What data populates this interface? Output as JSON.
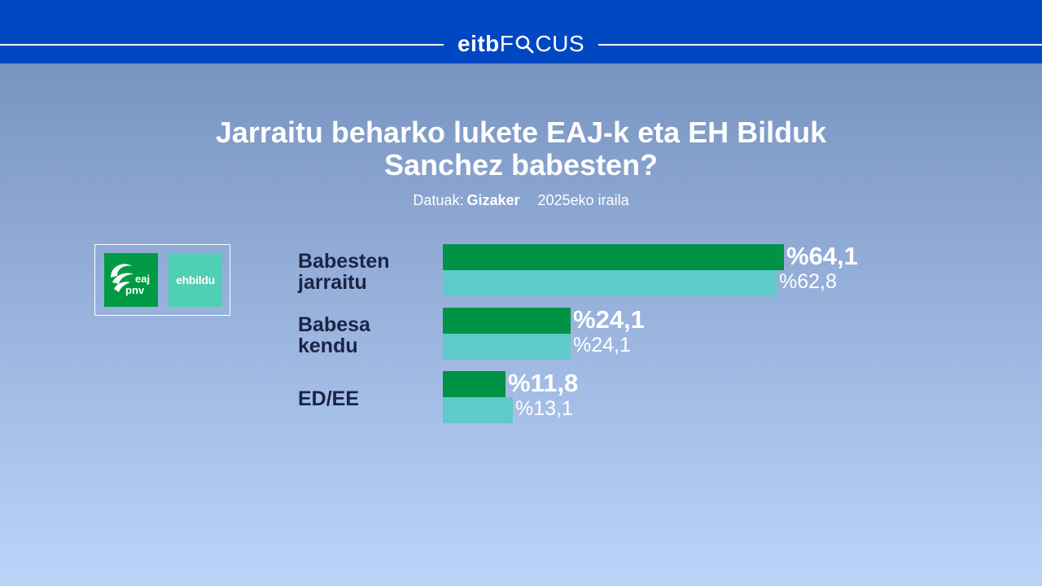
{
  "header": {
    "brand_main": "eitb",
    "brand_focus": "FOCUS"
  },
  "title_line1": "Jarraitu beharko lukete EAJ-k eta EH Bilduk",
  "title_line2": "Sanchez babesten?",
  "source_label": "Datuak:",
  "source_value": "Gizaker",
  "date": "2025eko iraila",
  "logos": {
    "pnv_text_1": "eaj",
    "pnv_text_2": "pnv",
    "bildu_text": "ehbildu"
  },
  "colors": {
    "header": "#0047c2",
    "series_eaj": "#009245",
    "series_bildu": "#5ecaca",
    "label_text": "#1a2444"
  },
  "chart_data": {
    "type": "bar",
    "orientation": "horizontal",
    "categories": [
      "Babesten jarraitu",
      "Babesa kendu",
      "ED/EE"
    ],
    "category_lines": [
      [
        "Babesten",
        "jarraitu"
      ],
      [
        "Babesa",
        "kendu"
      ],
      [
        "ED/EE"
      ]
    ],
    "series": [
      {
        "values": [
          64.1,
          24.1,
          11.8
        ],
        "labels": [
          "%64,1",
          "%24,1",
          "%11,8"
        ]
      },
      {
        "values": [
          62.8,
          24.1,
          13.1
        ],
        "labels": [
          "%62,8",
          "%24,1",
          "%13,1"
        ]
      }
    ],
    "xlim": [
      0,
      100
    ],
    "grid": false
  }
}
